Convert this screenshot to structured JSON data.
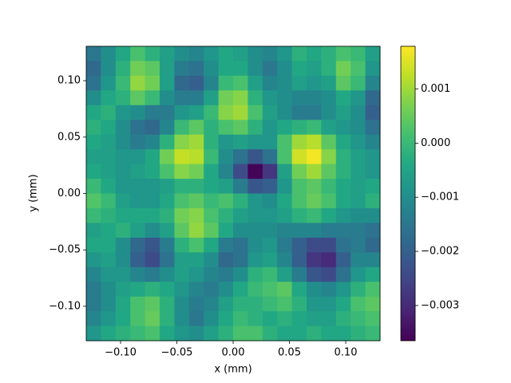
{
  "chart_data": {
    "type": "heatmap",
    "x_label": "x (mm)",
    "y_label": "y (mm)",
    "xlim": [
      -0.1305,
      0.1305
    ],
    "ylim": [
      -0.1305,
      0.1305
    ],
    "xticks": [
      {
        "value": -0.1,
        "label": "−0.10"
      },
      {
        "value": -0.05,
        "label": "−0.05"
      },
      {
        "value": 0,
        "label": "0.00"
      },
      {
        "value": 0.05,
        "label": "0.05"
      },
      {
        "value": 0.1,
        "label": "0.10"
      }
    ],
    "yticks": [
      {
        "value": -0.1,
        "label": "−0.10"
      },
      {
        "value": -0.05,
        "label": "−0.05"
      },
      {
        "value": 0,
        "label": "0.00"
      },
      {
        "value": 0.05,
        "label": "0.05"
      },
      {
        "value": 0.1,
        "label": "0.10"
      }
    ],
    "colormap": "viridis",
    "clim": [
      -0.00365,
      0.00179
    ],
    "cticks": [
      {
        "value": -0.003,
        "label": "−0.003"
      },
      {
        "value": -0.002,
        "label": "−0.002"
      },
      {
        "value": -0.001,
        "label": "−0.001"
      },
      {
        "value": 0,
        "label": "0.000"
      },
      0.001
    ],
    "origin": "upper",
    "z": [
      [
        -0.0015,
        -0.001,
        -0.0004,
        0.0002,
        -0.0002,
        -0.0006,
        -0.001,
        -0.0012,
        -0.0008,
        -0.0004,
        -0.0006,
        -0.001,
        -0.0012,
        -0.0008,
        -0.0002,
        -0.0004,
        -0.0002,
        0.0002,
        0,
        -0.0006
      ],
      [
        -0.0018,
        -0.001,
        -0.0002,
        0.0006,
        0.0004,
        -0.0006,
        -0.0014,
        -0.0016,
        -0.001,
        -0.0004,
        -0.0004,
        -0.001,
        -0.0015,
        -0.001,
        -0.0004,
        -0.0006,
        -0.0002,
        0.0006,
        0.0002,
        -0.0008
      ],
      [
        -0.0016,
        -0.0008,
        0,
        0.0009,
        0.0006,
        -0.0006,
        -0.0018,
        -0.002,
        -0.0012,
        0,
        0.0002,
        -0.0006,
        -0.0012,
        -0.001,
        -0.0006,
        -0.0008,
        -0.0006,
        0.0004,
        0,
        -0.0012
      ],
      [
        -0.001,
        -0.0004,
        -0.0002,
        0.0004,
        0,
        -0.001,
        -0.0014,
        -0.0014,
        -0.0006,
        0.0006,
        0.0008,
        -0.0002,
        -0.0008,
        -0.001,
        -0.0012,
        -0.0012,
        -0.001,
        -0.0004,
        -0.0008,
        -0.0018
      ],
      [
        -0.0004,
        -0.0002,
        -0.0008,
        -0.001,
        -0.0014,
        -0.0014,
        -0.0008,
        -0.0006,
        0,
        0.0008,
        0.001,
        0.0002,
        -0.0006,
        -0.001,
        -0.0014,
        -0.0014,
        -0.001,
        -0.0006,
        -0.001,
        -0.002
      ],
      [
        -0.0002,
        -0.0004,
        -0.001,
        -0.0016,
        -0.0018,
        -0.0012,
        0,
        0.0004,
        -0.0002,
        0.0002,
        0.0004,
        -0.0002,
        -0.0008,
        -0.0004,
        -0.0002,
        0,
        -0.0006,
        -0.0008,
        -0.001,
        -0.0016
      ],
      [
        -0.0004,
        -0.0006,
        -0.001,
        -0.0014,
        -0.0012,
        -0.0002,
        0.0008,
        0.001,
        -0.0002,
        -0.0008,
        -0.0006,
        -0.0008,
        -0.0008,
        0.0002,
        0.001,
        0.0012,
        0.0004,
        -0.0004,
        -0.0008,
        -0.0012
      ],
      [
        -0.0006,
        -0.0006,
        -0.0008,
        -0.0008,
        -0.0004,
        0.0006,
        0.0013,
        0.0012,
        0,
        -0.001,
        -0.0016,
        -0.0022,
        -0.0016,
        0.0002,
        0.0014,
        0.0017,
        0.0008,
        -0.0002,
        -0.0006,
        -0.0008
      ],
      [
        -0.0004,
        -0.0006,
        -0.0008,
        -0.0006,
        -0.0004,
        0.0002,
        0.0008,
        0.0006,
        -0.0004,
        -0.0012,
        -0.0024,
        -0.0036,
        -0.0028,
        -0.0006,
        0.0006,
        0.001,
        0.0004,
        -0.0002,
        -0.0006,
        -0.0008
      ],
      [
        0,
        -0.0004,
        -0.0008,
        -0.0008,
        -0.0008,
        -0.0006,
        -0.0002,
        -0.0002,
        -0.0004,
        -0.0006,
        -0.0014,
        -0.0022,
        -0.002,
        -0.0008,
        0.0002,
        0.0004,
        0,
        -0.0004,
        -0.0006,
        -0.0004
      ],
      [
        0.0003,
        0,
        -0.0006,
        -0.0008,
        -0.0008,
        -0.0004,
        0.0002,
        0.0004,
        0,
        0.0002,
        -0.0002,
        -0.0008,
        -0.001,
        -0.0004,
        0.0002,
        0.0005,
        0.0002,
        -0.0004,
        -0.0006,
        -0.0002
      ],
      [
        0,
        -0.0002,
        -0.0004,
        -0.0004,
        -0.0004,
        -0.0002,
        0.0006,
        0.0008,
        0.0002,
        -0.0002,
        -0.0006,
        -0.0008,
        -0.0008,
        -0.0006,
        -0.0002,
        0,
        -0.0004,
        -0.0008,
        -0.001,
        -0.001
      ],
      [
        -0.0006,
        -0.0004,
        -0.0002,
        -0.0006,
        -0.001,
        -0.0006,
        0.0004,
        0.0009,
        0.0004,
        -0.0004,
        -0.001,
        -0.001,
        -0.001,
        -0.0012,
        -0.0012,
        -0.0012,
        -0.0014,
        -0.0014,
        -0.0014,
        -0.0016
      ],
      [
        -0.0004,
        -0.0004,
        -0.001,
        -0.0018,
        -0.0022,
        -0.0014,
        -0.0002,
        0.0002,
        -0.0004,
        -0.0014,
        -0.0016,
        -0.001,
        -0.0008,
        -0.0014,
        -0.002,
        -0.0024,
        -0.0024,
        -0.0016,
        -0.0014,
        -0.0018
      ],
      [
        -0.0008,
        -0.0006,
        -0.001,
        -0.002,
        -0.0024,
        -0.0016,
        -0.0006,
        -0.0006,
        -0.001,
        -0.0018,
        -0.0016,
        -0.0008,
        -0.0006,
        -0.0012,
        -0.002,
        -0.0028,
        -0.003,
        -0.002,
        -0.0012,
        -0.0012
      ],
      [
        -0.0012,
        -0.0008,
        -0.0008,
        -0.0012,
        -0.0014,
        -0.001,
        -0.0006,
        -0.0008,
        -0.0012,
        -0.0014,
        -0.001,
        -0.0002,
        0,
        -0.0006,
        -0.0014,
        -0.0022,
        -0.0024,
        -0.0016,
        -0.0008,
        -0.0004
      ],
      [
        -0.0014,
        -0.001,
        -0.0006,
        -0.0004,
        -0.0002,
        -0.0004,
        -0.0008,
        -0.0012,
        -0.0014,
        -0.001,
        -0.0004,
        0,
        0.0002,
        0.0004,
        -0.0004,
        -0.001,
        -0.0012,
        -0.0008,
        -0.0002,
        0.0002
      ],
      [
        -0.0014,
        -0.001,
        -0.0004,
        0.0002,
        0.0004,
        -0.0002,
        -0.001,
        -0.0014,
        -0.0012,
        -0.0006,
        -0.0002,
        -0.0002,
        0,
        0.0002,
        -0.0002,
        -0.0008,
        -0.0008,
        -0.0004,
        0.0002,
        0.0004
      ],
      [
        -0.0012,
        -0.0008,
        -0.0004,
        0.0002,
        0.0005,
        -0.0002,
        -0.001,
        -0.0015,
        -0.001,
        -0.0004,
        0,
        -0.0002,
        -0.0004,
        -0.0002,
        -0.0004,
        -0.0006,
        -0.0006,
        -0.0002,
        0,
        0.0002
      ],
      [
        -0.0008,
        -0.0004,
        -0.0002,
        0,
        0.0002,
        -0.0004,
        -0.0008,
        -0.001,
        -0.0006,
        -0.0002,
        0.0002,
        0.0002,
        -0.0002,
        -0.0004,
        -0.0004,
        -0.0002,
        -0.0004,
        -0.0004,
        -0.0002,
        0
      ]
    ]
  }
}
